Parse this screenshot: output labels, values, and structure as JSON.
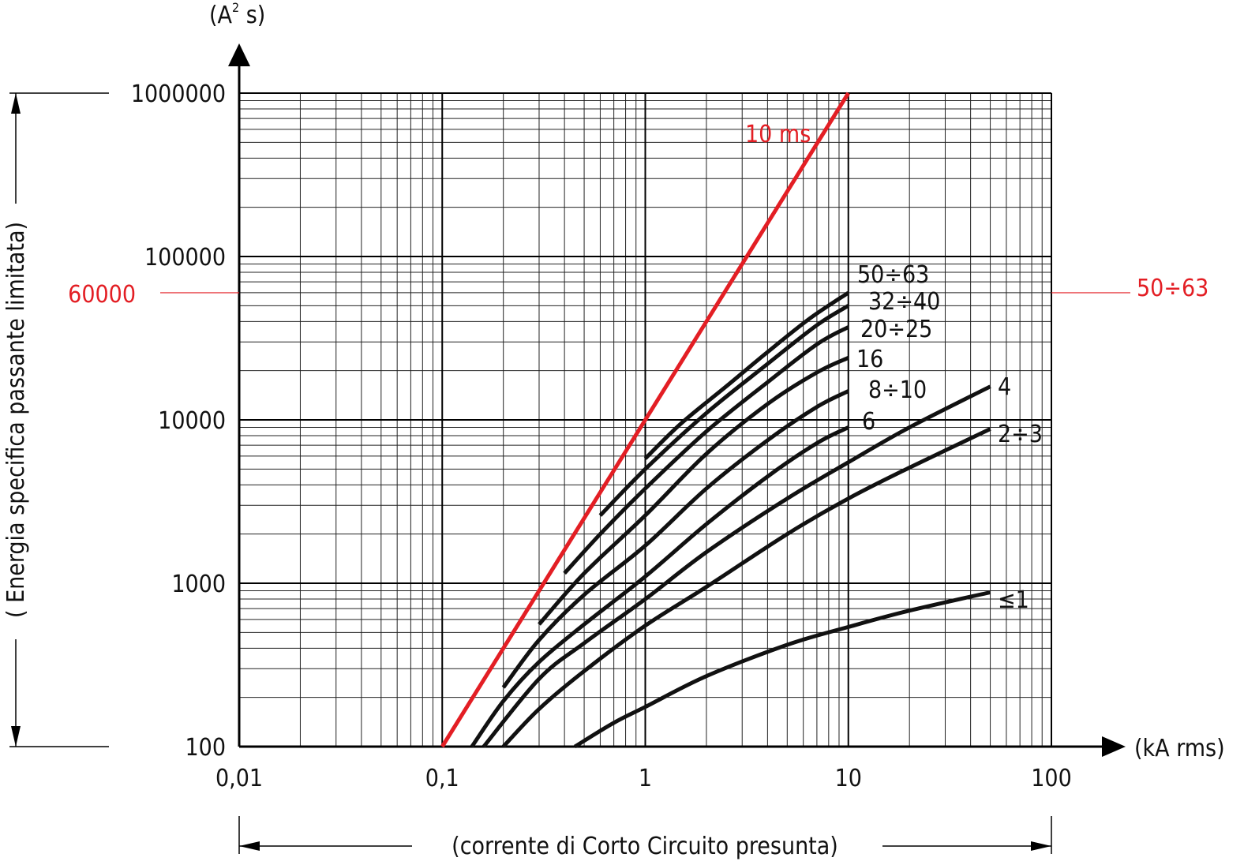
{
  "chart_data": {
    "type": "line",
    "x_scale": "log",
    "y_scale": "log",
    "xlim": [
      0.01,
      100
    ],
    "ylim": [
      100,
      1000000
    ],
    "grid": true,
    "x_unit": "(kA rms)",
    "y_unit_base": "(A",
    "y_unit_sup": "2",
    "y_unit_tail": " s)",
    "xlabel": "(correntе di Corto Circuito presunta)",
    "ylabel": "( Energia specifica passante limitata)",
    "x_ticks": [
      {
        "value": 0.01,
        "label": "0,01"
      },
      {
        "value": 0.1,
        "label": "0,1"
      },
      {
        "value": 1,
        "label": "1"
      },
      {
        "value": 10,
        "label": "10"
      },
      {
        "value": 100,
        "label": "100"
      }
    ],
    "y_ticks": [
      {
        "value": 100,
        "label": "100"
      },
      {
        "value": 1000,
        "label": "1000"
      },
      {
        "value": 10000,
        "label": "10000"
      },
      {
        "value": 100000,
        "label": "100000"
      },
      {
        "value": 1000000,
        "label": "1000000"
      }
    ],
    "reference": {
      "name": "10 ms",
      "color": "#e31e24",
      "x": [
        0.1,
        10
      ],
      "y": [
        100,
        1000000
      ]
    },
    "marker": {
      "value": 60000,
      "left_label": "60000",
      "right_label": "50÷63",
      "color": "#e31e24"
    },
    "series": [
      {
        "name": "50÷63",
        "x": [
          1,
          1.5,
          2.5,
          4,
          6.5,
          10
        ],
        "y": [
          5800,
          9500,
          16000,
          26000,
          42000,
          60000
        ]
      },
      {
        "name": "32÷40",
        "x": [
          0.6,
          1,
          2,
          4,
          7,
          10
        ],
        "y": [
          2600,
          5000,
          11000,
          22000,
          38000,
          50000
        ]
      },
      {
        "name": "20÷25",
        "x": [
          0.4,
          0.6,
          1,
          2,
          4,
          7,
          10
        ],
        "y": [
          1150,
          2000,
          3800,
          8500,
          17000,
          29000,
          37000
        ]
      },
      {
        "name": "16",
        "x": [
          0.3,
          0.5,
          1,
          2,
          4,
          7,
          10
        ],
        "y": [
          560,
          1150,
          2600,
          6200,
          12500,
          19500,
          24000
        ]
      },
      {
        "name": "8÷10",
        "x": [
          0.2,
          0.3,
          0.5,
          1,
          2,
          4,
          7,
          10
        ],
        "y": [
          230,
          450,
          850,
          1700,
          3800,
          7500,
          12000,
          15000
        ]
      },
      {
        "name": "6",
        "x": [
          0.14,
          0.2,
          0.3,
          0.5,
          1,
          2,
          4,
          7,
          10
        ],
        "y": [
          100,
          190,
          330,
          560,
          1100,
          2300,
          4500,
          7200,
          9000
        ]
      },
      {
        "name": "4",
        "x": [
          0.16,
          0.3,
          0.5,
          1,
          2,
          5,
          10,
          20,
          50
        ],
        "y": [
          100,
          260,
          430,
          800,
          1550,
          3300,
          5500,
          9000,
          16000
        ]
      },
      {
        "name": "2÷3",
        "x": [
          0.2,
          0.3,
          0.5,
          1,
          2,
          5,
          10,
          20,
          50
        ],
        "y": [
          100,
          170,
          290,
          550,
          950,
          2000,
          3300,
          5100,
          8800
        ]
      },
      {
        "name": "≤1",
        "x": [
          0.45,
          0.7,
          1,
          2,
          5,
          10,
          20,
          50
        ],
        "y": [
          100,
          140,
          175,
          270,
          420,
          540,
          680,
          880
        ]
      }
    ]
  }
}
